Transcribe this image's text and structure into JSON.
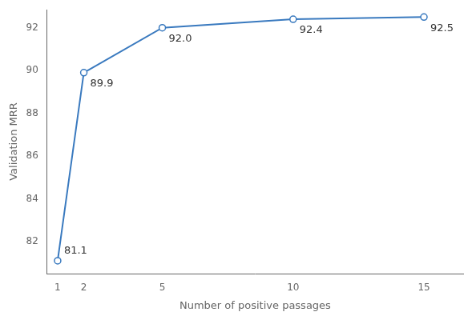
{
  "chart_data": {
    "type": "line",
    "x": [
      1,
      2,
      5,
      10,
      15
    ],
    "values": [
      81.1,
      89.9,
      92.0,
      92.4,
      92.5
    ],
    "value_labels": [
      "81.1",
      "89.9",
      "92.0",
      "92.4",
      "92.5"
    ],
    "data_labels": true,
    "xlabel": "Number of positive passages",
    "ylabel": "Validation MRR",
    "xlim": [
      0.6,
      16.5
    ],
    "ylim": [
      80.5,
      92.85
    ],
    "xticks": [
      1,
      2,
      5,
      10,
      15
    ],
    "yticks": [
      82,
      84,
      86,
      88,
      90,
      92
    ],
    "color": "#3a7abf",
    "marker": "circle",
    "grid": false
  }
}
